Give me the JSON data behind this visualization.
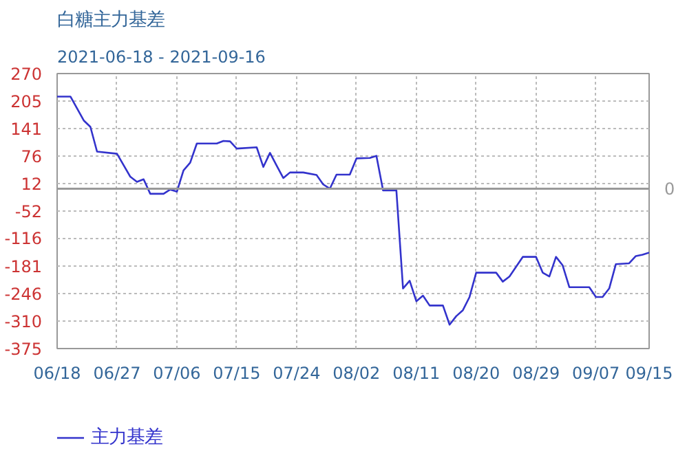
{
  "chart_data": {
    "type": "line",
    "title": "白糖主力基差",
    "subtitle": "2021-06-18 - 2021-09-16",
    "x": [
      "2021-06-18",
      "2021-06-20",
      "2021-06-22",
      "2021-06-23",
      "2021-06-24",
      "2021-06-27",
      "2021-06-29",
      "2021-06-30",
      "2021-07-01",
      "2021-07-02",
      "2021-07-04",
      "2021-07-05",
      "2021-07-06",
      "2021-07-07",
      "2021-07-08",
      "2021-07-09",
      "2021-07-12",
      "2021-07-13",
      "2021-07-14",
      "2021-07-15",
      "2021-07-18",
      "2021-07-19",
      "2021-07-20",
      "2021-07-21",
      "2021-07-22",
      "2021-07-23",
      "2021-07-25",
      "2021-07-27",
      "2021-07-28",
      "2021-07-29",
      "2021-07-30",
      "2021-08-01",
      "2021-08-02",
      "2021-08-04",
      "2021-08-05",
      "2021-08-06",
      "2021-08-08",
      "2021-08-09",
      "2021-08-10",
      "2021-08-11",
      "2021-08-12",
      "2021-08-13",
      "2021-08-15",
      "2021-08-16",
      "2021-08-17",
      "2021-08-18",
      "2021-08-19",
      "2021-08-20",
      "2021-08-23",
      "2021-08-24",
      "2021-08-25",
      "2021-08-27",
      "2021-08-29",
      "2021-08-30",
      "2021-08-31",
      "2021-09-01",
      "2021-09-02",
      "2021-09-03",
      "2021-09-06",
      "2021-09-07",
      "2021-09-08",
      "2021-09-09",
      "2021-09-10",
      "2021-09-12",
      "2021-09-13",
      "2021-09-14",
      "2021-09-15"
    ],
    "series": [
      {
        "name": "主力基差",
        "color": "#3333cc",
        "values": [
          216,
          216,
          160,
          145,
          87,
          82,
          28,
          16,
          22,
          -12,
          -12,
          -2,
          -7,
          43,
          61,
          106,
          106,
          112,
          111,
          94,
          97,
          51,
          84,
          54,
          25,
          38,
          38,
          32,
          10,
          0,
          33,
          33,
          71,
          72,
          77,
          -4,
          -4,
          -234,
          -216,
          -264,
          -251,
          -274,
          -274,
          -319,
          -299,
          -285,
          -254,
          -197,
          -197,
          -218,
          -206,
          -160,
          -160,
          -197,
          -206,
          -160,
          -180,
          -231,
          -231,
          -254,
          -254,
          -234,
          -177,
          -175,
          -158,
          -155,
          -150
        ]
      }
    ],
    "xlim": [
      "2021-06-18",
      "2021-09-15"
    ],
    "xticks": [
      {
        "value": "2021-06-18",
        "label": "06/18"
      },
      {
        "value": "2021-06-27",
        "label": "06/27"
      },
      {
        "value": "2021-07-06",
        "label": "07/06"
      },
      {
        "value": "2021-07-15",
        "label": "07/15"
      },
      {
        "value": "2021-07-24",
        "label": "07/24"
      },
      {
        "value": "2021-08-02",
        "label": "08/02"
      },
      {
        "value": "2021-08-11",
        "label": "08/11"
      },
      {
        "value": "2021-08-20",
        "label": "08/20"
      },
      {
        "value": "2021-08-29",
        "label": "08/29"
      },
      {
        "value": "2021-09-07",
        "label": "09/07"
      },
      {
        "value": "2021-09-15",
        "label": "09/15"
      }
    ],
    "ylim": [
      -375,
      270
    ],
    "yticks": [
      270,
      205,
      141,
      76,
      12,
      -52,
      -116,
      -181,
      -246,
      -310,
      -375
    ],
    "ref_lines": [
      {
        "axis": "y",
        "value": 0,
        "label": "0",
        "color": "#999999"
      }
    ],
    "grid": true,
    "legend": "bottom left",
    "marker": "none",
    "line_style": "solid"
  }
}
